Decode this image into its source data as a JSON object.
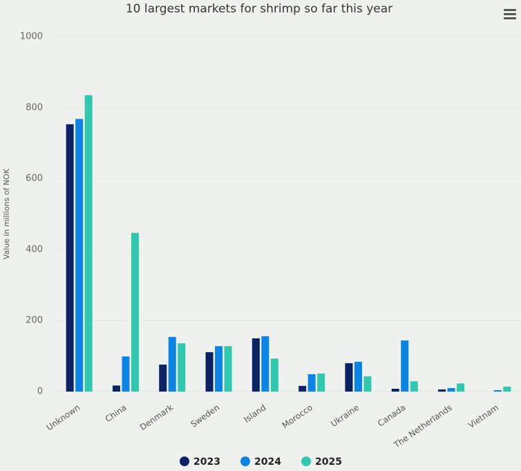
{
  "chart_data": {
    "type": "bar",
    "title": "10 largest markets for shrimp so far this year",
    "y_label": "Value in millions of NOK",
    "categories": [
      "Unknown",
      "China",
      "Denmark",
      "Sweden",
      "Island",
      "Morocco",
      "Ukraine",
      "Canada",
      "The Netherlands",
      "Vietnam"
    ],
    "series": [
      {
        "name": "2023",
        "color": "#0b2265",
        "values": [
          753,
          17,
          76,
          111,
          150,
          16,
          80,
          8,
          6,
          null
        ]
      },
      {
        "name": "2024",
        "color": "#0b84e6",
        "values": [
          768,
          99,
          154,
          128,
          156,
          49,
          84,
          144,
          10,
          4
        ]
      },
      {
        "name": "2025",
        "color": "#30c9b0",
        "values": [
          835,
          447,
          136,
          128,
          93,
          51,
          43,
          29,
          23,
          14
        ]
      }
    ],
    "ylim": [
      0,
      1000
    ],
    "yticks": [
      0,
      200,
      400,
      600,
      800,
      1000
    ],
    "grid": true,
    "legend": "bottom"
  }
}
